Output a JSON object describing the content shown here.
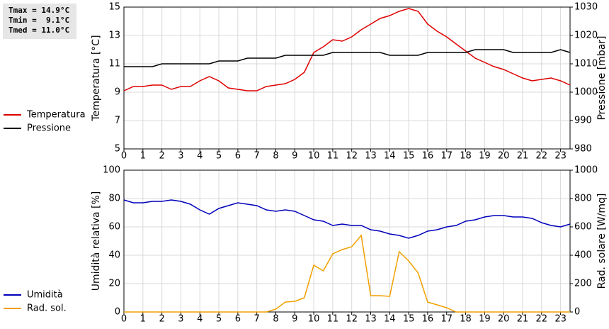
{
  "chart_data": [
    {
      "type": "line",
      "annotations": [
        "Tmax = 14.9°C",
        "Tmin =  9.1°C",
        "Tmed = 11.0°C"
      ],
      "ylabel": "Temperatura [°C]",
      "y2label": "Pressione [mbar]",
      "x": [
        0,
        0.5,
        1,
        1.5,
        2,
        2.5,
        3,
        3.5,
        4,
        4.5,
        5,
        5.5,
        6,
        6.5,
        7,
        7.5,
        8,
        8.5,
        9,
        9.5,
        10,
        10.5,
        11,
        11.5,
        12,
        12.5,
        13,
        13.5,
        14,
        14.5,
        15,
        15.5,
        16,
        16.5,
        17,
        17.5,
        18,
        18.5,
        19,
        19.5,
        20,
        20.5,
        21,
        21.5,
        22,
        22.5,
        23,
        23.5
      ],
      "xlim": [
        0,
        23.5
      ],
      "xticks": [
        0,
        1,
        2,
        3,
        4,
        5,
        6,
        7,
        8,
        9,
        10,
        11,
        12,
        13,
        14,
        15,
        16,
        17,
        18,
        19,
        20,
        21,
        22,
        23
      ],
      "ylim": [
        5,
        15
      ],
      "yticks": [
        5,
        7,
        9,
        11,
        13,
        15
      ],
      "y2lim": [
        980,
        1030
      ],
      "y2ticks": [
        980,
        990,
        1000,
        1010,
        1020,
        1030
      ],
      "grid": true,
      "series": [
        {
          "name": "Temperatura",
          "color": "#dd0000",
          "values": [
            9.1,
            9.4,
            9.4,
            9.5,
            9.5,
            9.2,
            9.4,
            9.4,
            9.8,
            10.1,
            9.8,
            9.3,
            9.2,
            9.1,
            9.1,
            9.4,
            9.5,
            9.6,
            9.9,
            10.4,
            11.8,
            12.2,
            12.7,
            12.6,
            12.9,
            13.4,
            13.8,
            14.2,
            14.4,
            14.7,
            14.9,
            14.7,
            13.8,
            13.3,
            12.9,
            12.4,
            11.9,
            11.4,
            11.1,
            10.8,
            10.6,
            10.3,
            10.0,
            9.8,
            9.9,
            10.0,
            9.8,
            9.5
          ]
        },
        {
          "name": "Pressione",
          "color": "#000000",
          "axis": "y2",
          "values": [
            1009,
            1009,
            1009,
            1009,
            1010,
            1010,
            1010,
            1010,
            1010,
            1010,
            1011,
            1011,
            1011,
            1012,
            1012,
            1012,
            1012,
            1013,
            1013,
            1013,
            1013,
            1013,
            1014,
            1014,
            1014,
            1014,
            1014,
            1014,
            1013,
            1013,
            1013,
            1013,
            1014,
            1014,
            1014,
            1014,
            1014,
            1015,
            1015,
            1015,
            1015,
            1014,
            1014,
            1014,
            1014,
            1014,
            1015,
            1014
          ]
        }
      ]
    },
    {
      "type": "line",
      "ylabel": "Umidità relativa [%]",
      "y2label": "Rad. solare [W/mq]",
      "x": [
        0,
        0.5,
        1,
        1.5,
        2,
        2.5,
        3,
        3.5,
        4,
        4.5,
        5,
        5.5,
        6,
        6.5,
        7,
        7.5,
        8,
        8.5,
        9,
        9.5,
        10,
        10.5,
        11,
        11.5,
        12,
        12.5,
        13,
        13.5,
        14,
        14.5,
        15,
        15.5,
        16,
        16.5,
        17,
        17.5,
        18,
        18.5,
        19,
        19.5,
        20,
        20.5,
        21,
        21.5,
        22,
        22.5,
        23,
        23.5
      ],
      "xlim": [
        0,
        23.5
      ],
      "xticks": [
        0,
        1,
        2,
        3,
        4,
        5,
        6,
        7,
        8,
        9,
        10,
        11,
        12,
        13,
        14,
        15,
        16,
        17,
        18,
        19,
        20,
        21,
        22,
        23
      ],
      "ylim": [
        0,
        100
      ],
      "yticks": [
        0,
        20,
        40,
        60,
        80,
        100
      ],
      "y2lim": [
        0,
        1000
      ],
      "y2ticks": [
        0,
        200,
        400,
        600,
        800,
        1000
      ],
      "grid": true,
      "series": [
        {
          "name": "Umidità",
          "color": "#0000bb",
          "values": [
            79,
            77,
            77,
            78,
            78,
            79,
            78,
            76,
            72,
            69,
            73,
            75,
            77,
            76,
            75,
            72,
            71,
            72,
            71,
            68,
            65,
            64,
            61,
            62,
            61,
            61,
            58,
            57,
            55,
            54,
            52,
            54,
            57,
            58,
            60,
            61,
            64,
            65,
            67,
            68,
            68,
            67,
            67,
            66,
            63,
            61,
            60,
            62
          ]
        },
        {
          "name": "Rad. sol.",
          "color": "#f0a000",
          "axis": "y2",
          "values": [
            0,
            0,
            0,
            0,
            0,
            0,
            0,
            0,
            0,
            0,
            0,
            0,
            0,
            0,
            0,
            0,
            20,
            70,
            75,
            100,
            330,
            290,
            410,
            440,
            460,
            540,
            115,
            115,
            110,
            425,
            360,
            275,
            70,
            50,
            30,
            0,
            0,
            0,
            0,
            0,
            0,
            0,
            0,
            0,
            0,
            0,
            0,
            0
          ]
        }
      ]
    }
  ]
}
